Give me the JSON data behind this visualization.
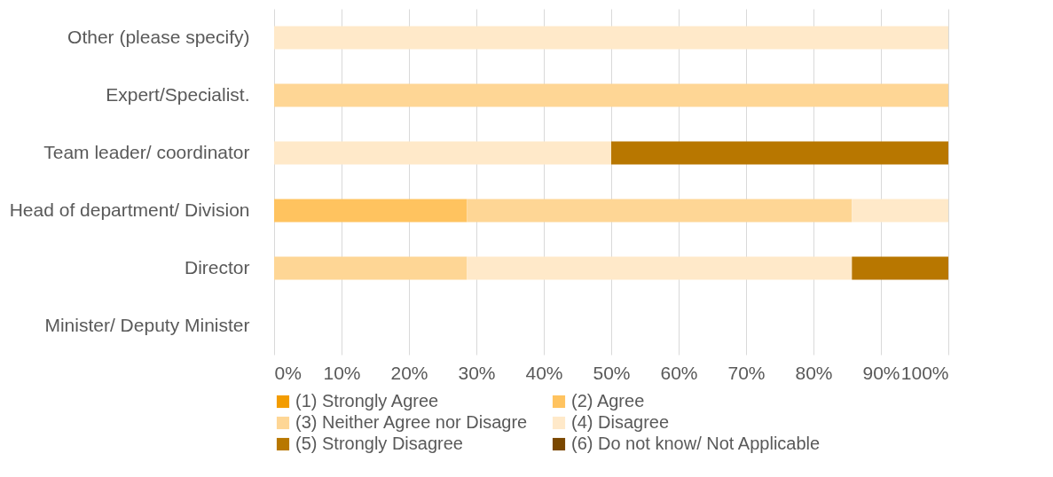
{
  "chart_data": {
    "type": "bar",
    "orientation": "horizontal",
    "stacked": true,
    "categories": [
      "Other (please specify)",
      "Expert/Specialist.",
      "Team leader/ coordinator",
      "Head of department/ Division",
      "Director",
      "Minister/ Deputy Minister"
    ],
    "series": [
      {
        "name": "(1) Strongly Agree",
        "color": "#f39c00",
        "values": [
          null,
          null,
          null,
          null,
          null,
          null
        ]
      },
      {
        "name": "(2) Agree",
        "color": "#ffc35f",
        "values": [
          null,
          null,
          null,
          28.6,
          null,
          null
        ]
      },
      {
        "name": "(3) Neither Agree nor Disagre",
        "color": "#fed695",
        "values": [
          null,
          100,
          null,
          57.1,
          28.6,
          null
        ]
      },
      {
        "name": "(4) Disagree",
        "color": "#ffe9c9",
        "values": [
          100,
          null,
          50,
          14.3,
          57.1,
          null
        ]
      },
      {
        "name": "(5) Strongly Disagree",
        "color": "#b87700",
        "values": [
          null,
          null,
          50,
          null,
          14.3,
          null
        ]
      },
      {
        "name": "(6) Do not know/ Not Applicable",
        "color": "#7a4700",
        "values": [
          null,
          null,
          null,
          null,
          null,
          null
        ]
      }
    ],
    "xlim": [
      0,
      100
    ],
    "xticks": [
      {
        "value": 0,
        "label": "0%"
      },
      {
        "value": 10,
        "label": "10%"
      },
      {
        "value": 20,
        "label": "20%"
      },
      {
        "value": 30,
        "label": "30%"
      },
      {
        "value": 40,
        "label": "40%"
      },
      {
        "value": 50,
        "label": "50%"
      },
      {
        "value": 60,
        "label": "60%"
      },
      {
        "value": 70,
        "label": "70%"
      },
      {
        "value": 80,
        "label": "80%"
      },
      {
        "value": 90,
        "label": "90%"
      },
      {
        "value": 100,
        "label": "100%"
      }
    ],
    "grid": "x",
    "legend": "bottom"
  }
}
